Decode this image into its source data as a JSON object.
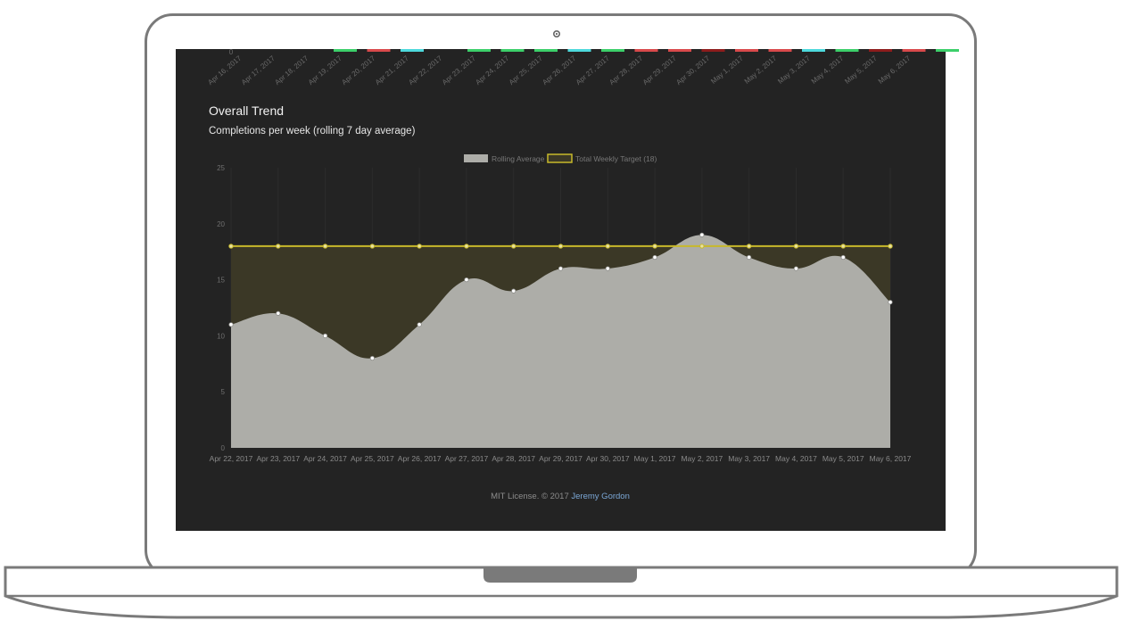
{
  "top_strip": {
    "y_zero_label": "0",
    "dates": [
      "Apr 16, 2017",
      "Apr 17, 2017",
      "Apr 18, 2017",
      "Apr 19, 2017",
      "Apr 20, 2017",
      "Apr 21, 2017",
      "Apr 22, 2017",
      "Apr 23, 2017",
      "Apr 24, 2017",
      "Apr 25, 2017",
      "Apr 26, 2017",
      "Apr 27, 2017",
      "Apr 28, 2017",
      "Apr 29, 2017",
      "Apr 30, 2017",
      "May 1, 2017",
      "May 2, 2017",
      "May 3, 2017",
      "May 4, 2017",
      "May 5, 2017",
      "May 6, 2017"
    ],
    "bar_colors": [
      "",
      "",
      "#3ccf6a",
      "#d9494b",
      "#4dd9dc",
      "",
      "#3ccf6a",
      "#3ccf6a",
      "#3ccf6a",
      "#4dd9dc",
      "#3ccf6a",
      "#d9494b",
      "#d9494b",
      "#8e1c1c",
      "#d9494b",
      "#d9494b",
      "#4dd9dc",
      "#3ccf6a",
      "#8e1c1c",
      "#d9494b",
      "#3ccf6a"
    ]
  },
  "section": {
    "title": "Overall Trend",
    "subtitle": "Completions per week (rolling 7 day average)"
  },
  "chart_data": {
    "type": "area",
    "x": [
      "Apr 22, 2017",
      "Apr 23, 2017",
      "Apr 24, 2017",
      "Apr 25, 2017",
      "Apr 26, 2017",
      "Apr 27, 2017",
      "Apr 28, 2017",
      "Apr 29, 2017",
      "Apr 30, 2017",
      "May 1, 2017",
      "May 2, 2017",
      "May 3, 2017",
      "May 4, 2017",
      "May 5, 2017",
      "May 6, 2017"
    ],
    "series": [
      {
        "name": "Rolling Average",
        "color": "#adada8",
        "values": [
          11,
          12,
          10,
          8,
          11,
          15,
          14,
          16,
          16,
          17,
          19,
          17,
          16,
          17,
          13
        ]
      },
      {
        "name": "Total Weekly Target (18)",
        "color": "#c8b92a",
        "values": [
          18,
          18,
          18,
          18,
          18,
          18,
          18,
          18,
          18,
          18,
          18,
          18,
          18,
          18,
          18
        ]
      }
    ],
    "ylim": [
      0,
      25
    ],
    "yticks": [
      0,
      5,
      10,
      15,
      20,
      25
    ],
    "legend_position": "top-center",
    "grid": true
  },
  "footer": {
    "license_text": "MIT License. © 2017 ",
    "author": "Jeremy Gordon"
  },
  "colors": {
    "screen_bg": "#232323",
    "target_fill": "#3b3826",
    "link": "#7ba7d6"
  }
}
